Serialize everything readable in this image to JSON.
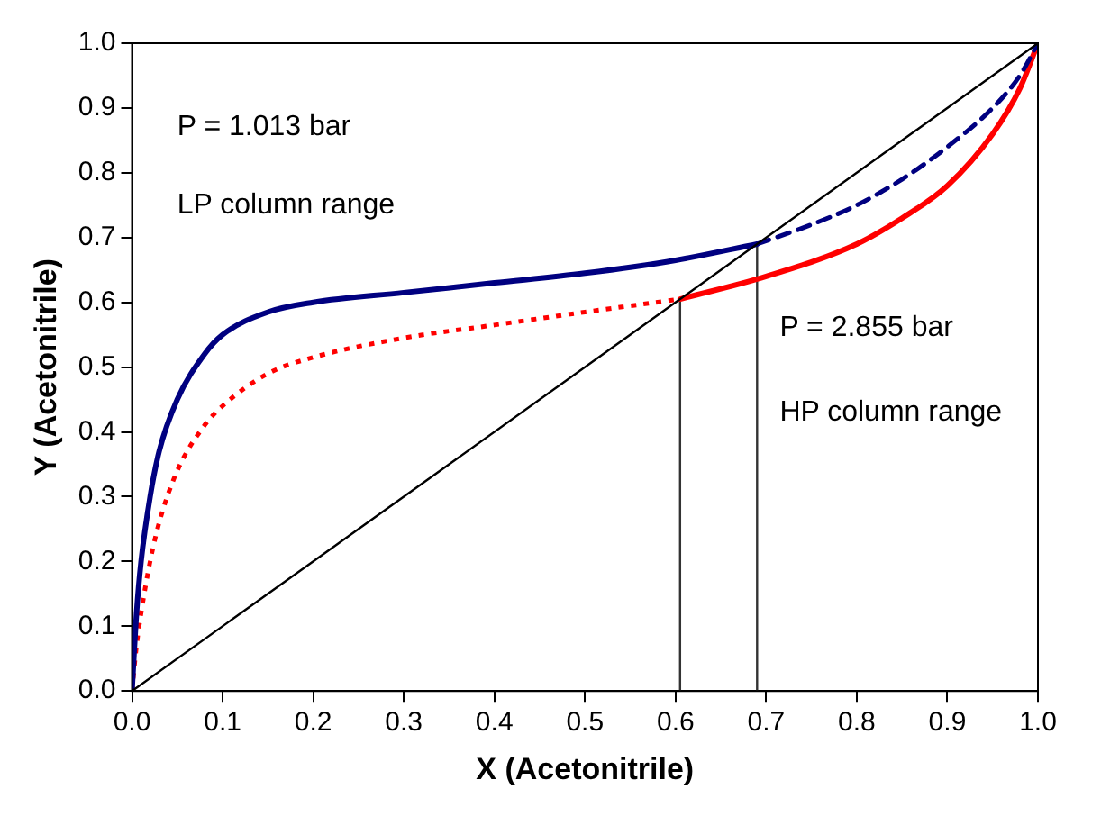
{
  "chart_data": {
    "type": "line",
    "xlabel": "X (Acetonitrile)",
    "ylabel": "Y (Acetonitrile)",
    "xlim": [
      0,
      1
    ],
    "ylim": [
      0,
      1
    ],
    "xticks": [
      {
        "value": 0,
        "label": "0.0"
      },
      0.1,
      0.2,
      0.3,
      0.4,
      0.5,
      0.6,
      0.7,
      0.8,
      0.9,
      {
        "value": 1,
        "label": "1.0"
      }
    ],
    "yticks": [
      {
        "value": 0,
        "label": "0.0"
      },
      0.1,
      0.2,
      0.3,
      0.4,
      0.5,
      0.6,
      0.7,
      0.8,
      0.9,
      {
        "value": 1,
        "label": "1.0"
      }
    ],
    "marker": "none",
    "legend": false,
    "series": [
      {
        "color": "#000000",
        "line_style": "solid",
        "x": [
          0,
          1
        ],
        "values": [
          0,
          1
        ]
      },
      {
        "color": "#000080",
        "line_style": "solid",
        "x": [
          0,
          0.005,
          0.01,
          0.02,
          0.03,
          0.05,
          0.08,
          0.1,
          0.15,
          0.2,
          0.3,
          0.4,
          0.5,
          0.6,
          0.69
        ],
        "values": [
          0,
          0.12,
          0.2,
          0.3,
          0.37,
          0.45,
          0.52,
          0.55,
          0.585,
          0.6,
          0.615,
          0.63,
          0.645,
          0.665,
          0.69
        ]
      },
      {
        "color": "#000080",
        "line_style": "dashed",
        "x": [
          0.69,
          0.75,
          0.8,
          0.85,
          0.9,
          0.95,
          0.98,
          1
        ],
        "values": [
          0.69,
          0.72,
          0.75,
          0.79,
          0.84,
          0.9,
          0.95,
          1
        ]
      },
      {
        "color": "#ff0000",
        "line_style": "dotted",
        "x": [
          0,
          0.005,
          0.01,
          0.02,
          0.03,
          0.05,
          0.08,
          0.1,
          0.15,
          0.2,
          0.3,
          0.4,
          0.5,
          0.605
        ],
        "values": [
          0,
          0.07,
          0.12,
          0.2,
          0.26,
          0.34,
          0.41,
          0.44,
          0.49,
          0.515,
          0.545,
          0.565,
          0.585,
          0.605
        ]
      },
      {
        "color": "#ff0000",
        "line_style": "solid",
        "x": [
          0.605,
          0.7,
          0.8,
          0.85,
          0.9,
          0.95,
          0.98,
          1
        ],
        "values": [
          0.605,
          0.64,
          0.69,
          0.73,
          0.78,
          0.86,
          0.93,
          1
        ]
      },
      {
        "color": "#333333",
        "line_style": "solid",
        "x": [
          0.605,
          0.605
        ],
        "values": [
          0,
          0.605
        ]
      },
      {
        "color": "#333333",
        "line_style": "solid",
        "x": [
          0.69,
          0.69
        ],
        "values": [
          0,
          0.69
        ]
      }
    ],
    "annotations": [
      "P = 1.013 bar",
      "LP column range",
      "P = 2.855 bar",
      "HP column range"
    ]
  }
}
